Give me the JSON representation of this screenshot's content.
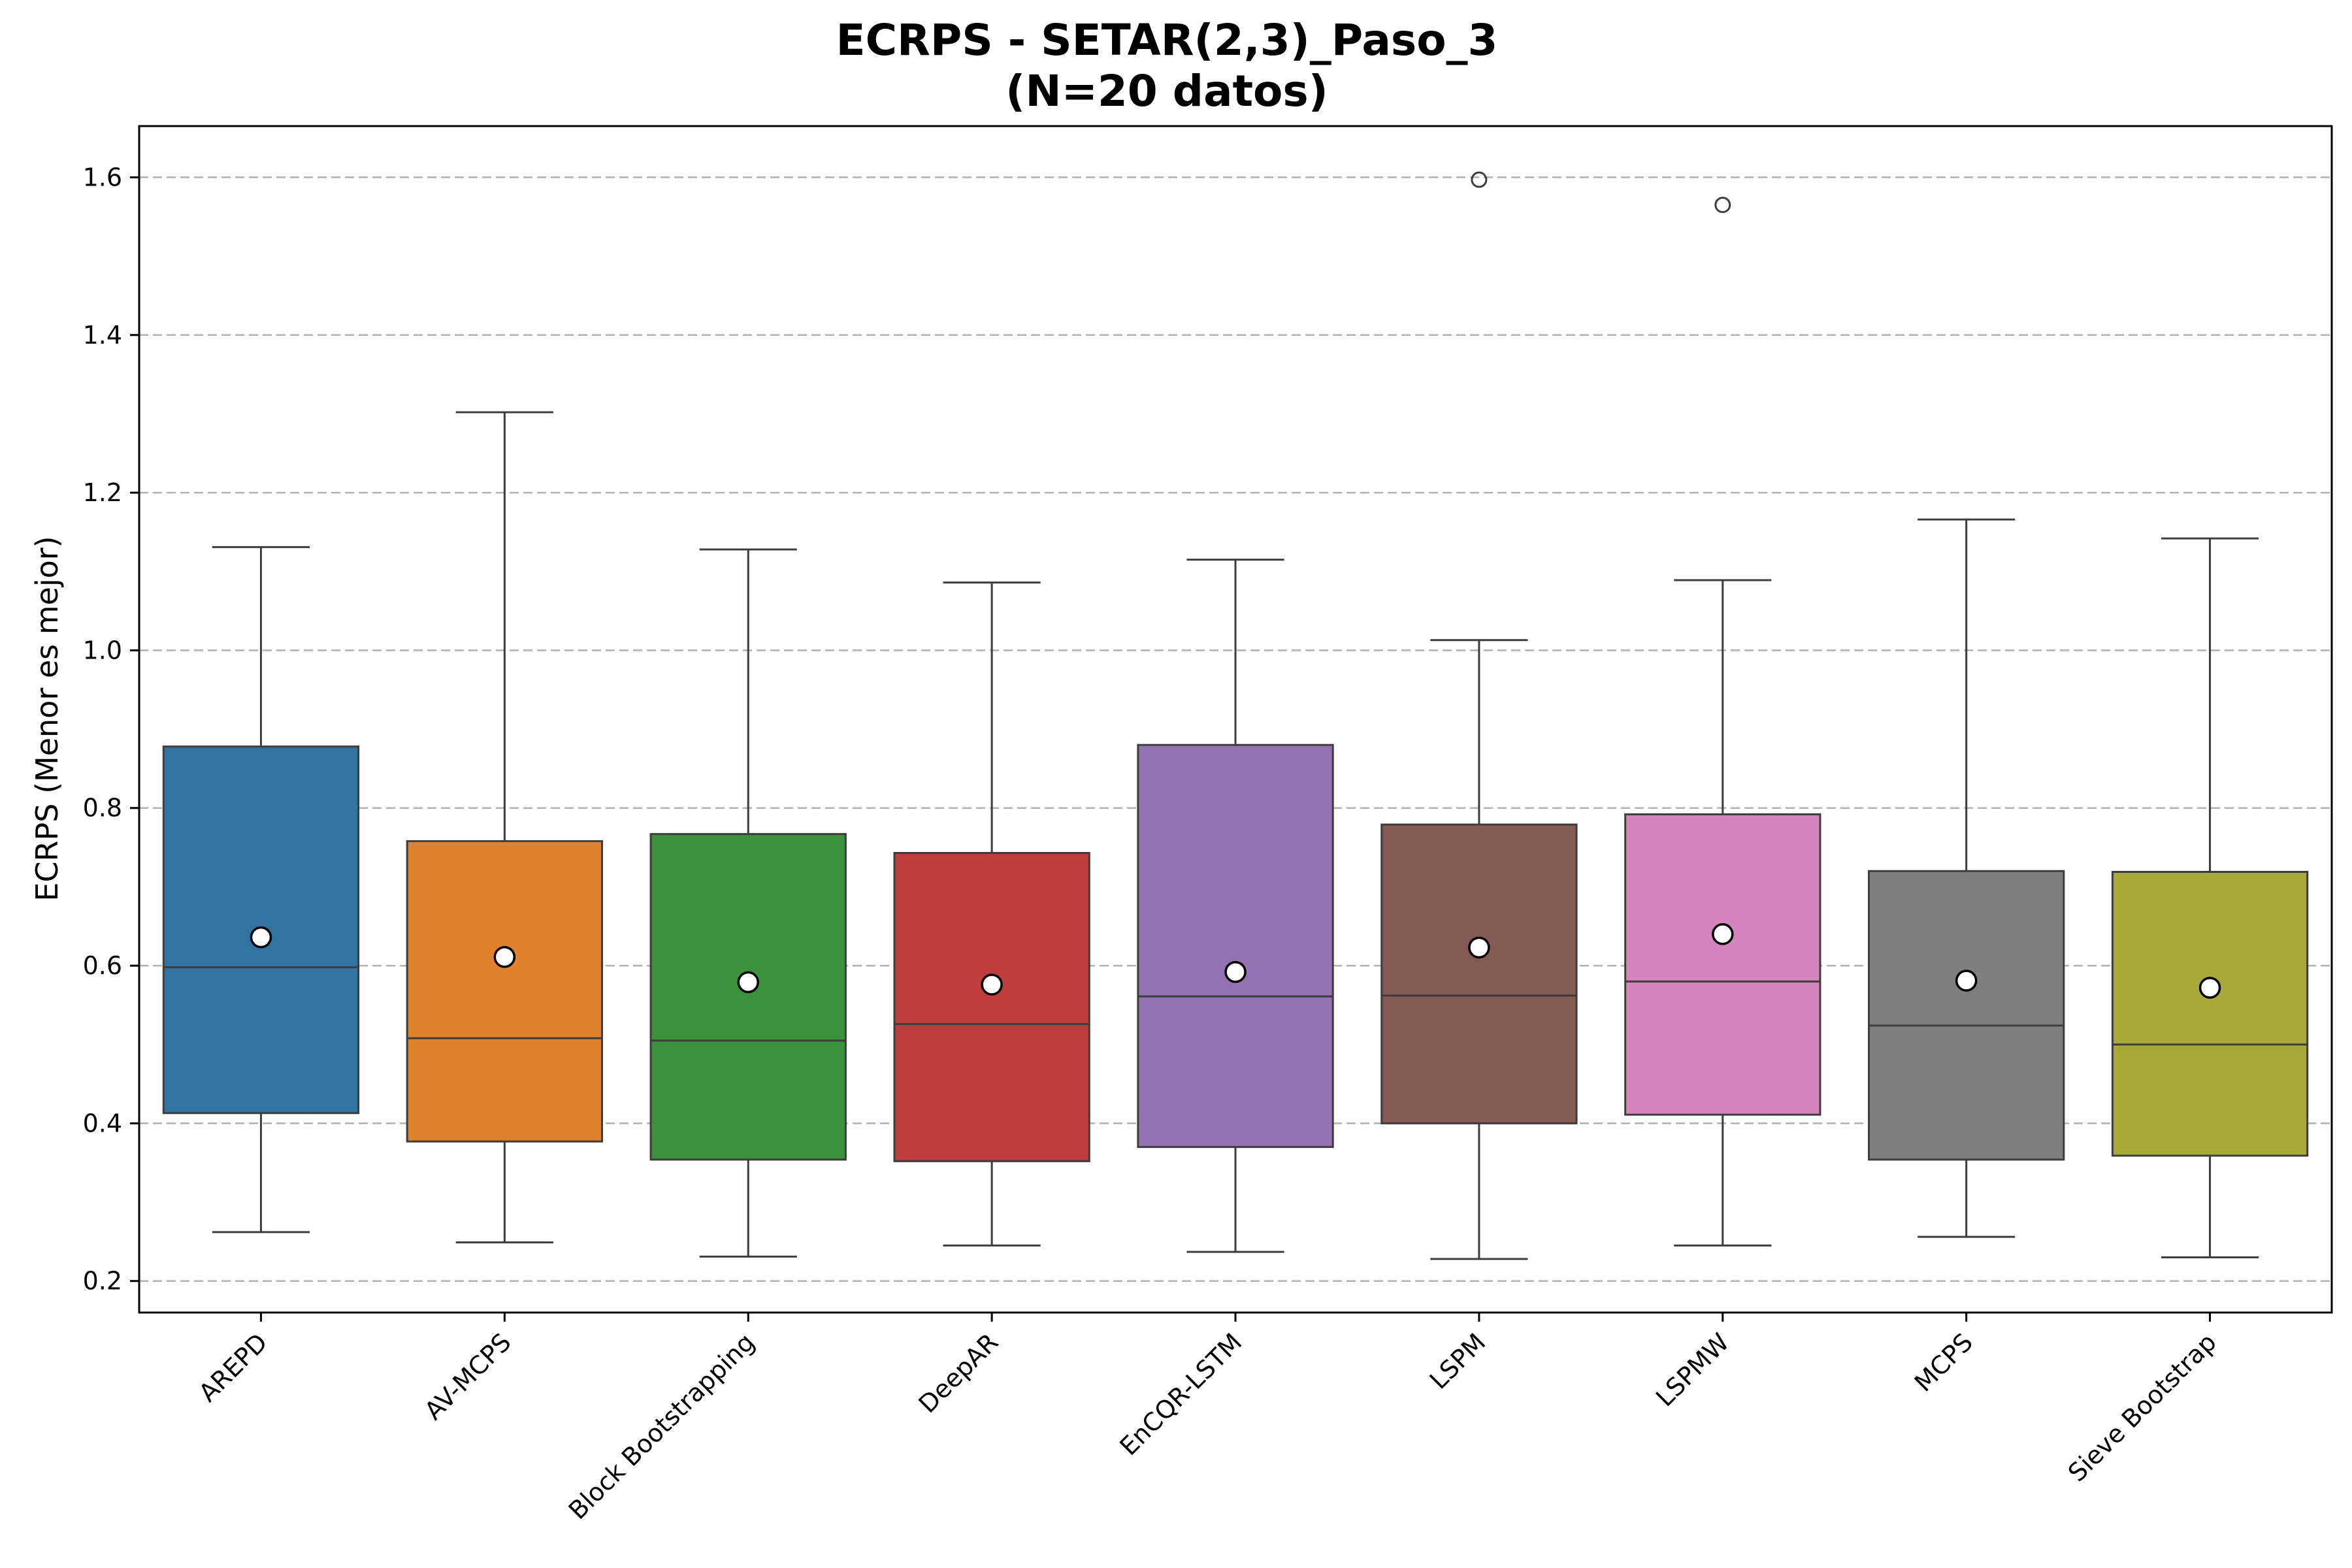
{
  "chart_data": {
    "type": "box",
    "title": "ECRPS - SETAR(2,3)_Paso_3",
    "subtitle": "(N=20 datos)",
    "xlabel": "",
    "ylabel": "ECRPS (Menor es mejor)",
    "ylim": [
      0.16,
      1.665
    ],
    "yticks": [
      0.2,
      0.4,
      0.6,
      0.8,
      1.0,
      1.2,
      1.4,
      1.6
    ],
    "ytick_labels": [
      "0.2",
      "0.4",
      "0.6",
      "0.8",
      "1.0",
      "1.2",
      "1.4",
      "1.6"
    ],
    "grid": "horizontal dashed",
    "categories": [
      "AREPD",
      "AV-MCPS",
      "Block Bootstrapping",
      "DeepAR",
      "EnCQR-LSTM",
      "LSPM",
      "LSPMW",
      "MCPS",
      "Sieve Bootstrap"
    ],
    "series": [
      {
        "name": "AREPD",
        "whisker_low": 0.262,
        "q1": 0.413,
        "median": 0.598,
        "q3": 0.878,
        "whisker_high": 1.131,
        "mean": 0.636,
        "outliers": [],
        "color": "#3274a1"
      },
      {
        "name": "AV-MCPS",
        "whisker_low": 0.249,
        "q1": 0.377,
        "median": 0.508,
        "q3": 0.758,
        "whisker_high": 1.302,
        "mean": 0.611,
        "outliers": [],
        "color": "#e1812c"
      },
      {
        "name": "Block Bootstrapping",
        "whisker_low": 0.231,
        "q1": 0.354,
        "median": 0.505,
        "q3": 0.767,
        "whisker_high": 1.128,
        "mean": 0.579,
        "outliers": [],
        "color": "#3a923a"
      },
      {
        "name": "DeepAR",
        "whisker_low": 0.245,
        "q1": 0.352,
        "median": 0.526,
        "q3": 0.743,
        "whisker_high": 1.086,
        "mean": 0.576,
        "outliers": [],
        "color": "#c03d3e"
      },
      {
        "name": "EnCQR-LSTM",
        "whisker_low": 0.237,
        "q1": 0.37,
        "median": 0.561,
        "q3": 0.88,
        "whisker_high": 1.115,
        "mean": 0.592,
        "outliers": [],
        "color": "#9372b2"
      },
      {
        "name": "LSPM",
        "whisker_low": 0.228,
        "q1": 0.4,
        "median": 0.562,
        "q3": 0.779,
        "whisker_high": 1.013,
        "mean": 0.623,
        "outliers": [
          1.597
        ],
        "color": "#845b53"
      },
      {
        "name": "LSPMW",
        "whisker_low": 0.245,
        "q1": 0.411,
        "median": 0.58,
        "q3": 0.792,
        "whisker_high": 1.089,
        "mean": 0.64,
        "outliers": [
          1.565
        ],
        "color": "#d684bd"
      },
      {
        "name": "MCPS",
        "whisker_low": 0.256,
        "q1": 0.354,
        "median": 0.524,
        "q3": 0.72,
        "whisker_high": 1.166,
        "mean": 0.581,
        "outliers": [],
        "color": "#7f7f7f"
      },
      {
        "name": "Sieve Bootstrap",
        "whisker_low": 0.23,
        "q1": 0.359,
        "median": 0.5,
        "q3": 0.719,
        "whisker_high": 1.142,
        "mean": 0.572,
        "outliers": [],
        "color": "#a9a93a"
      }
    ]
  }
}
